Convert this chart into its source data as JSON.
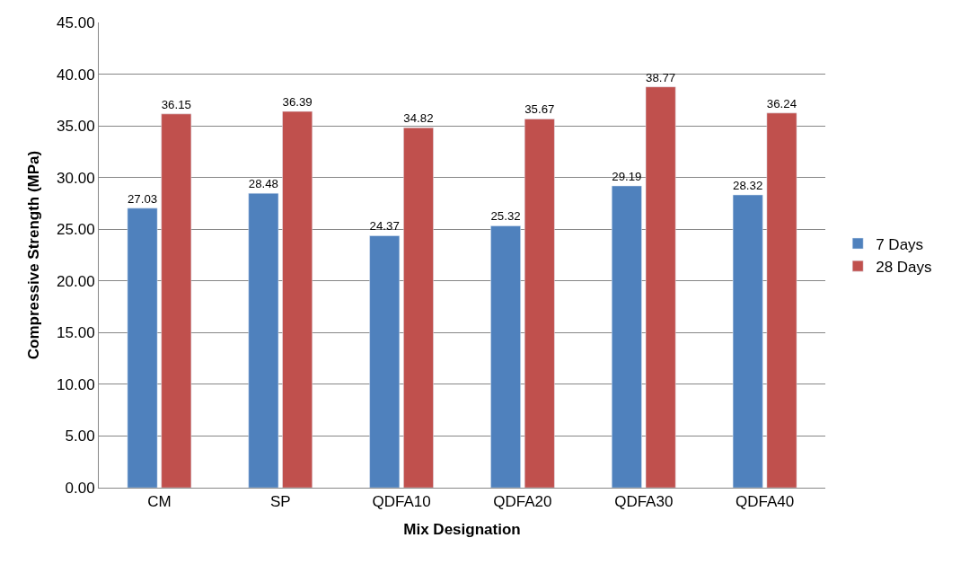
{
  "chart_data": {
    "type": "bar",
    "xlabel": "Mix Designation",
    "ylabel": "Compressive Strength (MPa)",
    "categories": [
      "CM",
      "SP",
      "QDFA10",
      "QDFA20",
      "QDFA30",
      "QDFA40"
    ],
    "series": [
      {
        "name": "7 Days",
        "color": "#4f81bd",
        "values": [
          27.03,
          28.48,
          24.37,
          25.32,
          29.19,
          28.32
        ]
      },
      {
        "name": "28 Days",
        "color": "#c0504d",
        "values": [
          36.15,
          36.39,
          34.82,
          35.67,
          38.77,
          36.24
        ]
      }
    ],
    "ylim": [
      0,
      45
    ],
    "yticks": [
      {
        "value": 0,
        "label": "0.00"
      },
      {
        "value": 5,
        "label": "5.00"
      },
      {
        "value": 10,
        "label": "10.00"
      },
      {
        "value": 15,
        "label": "15.00"
      },
      {
        "value": 20,
        "label": "20.00"
      },
      {
        "value": 25,
        "label": "25.00"
      },
      {
        "value": 30,
        "label": "30.00"
      },
      {
        "value": 35,
        "label": "35.00"
      },
      {
        "value": 40,
        "label": "40.00"
      },
      {
        "value": 45,
        "label": "45.00"
      }
    ],
    "grid": "y",
    "legend": "right",
    "data_labels": true
  }
}
